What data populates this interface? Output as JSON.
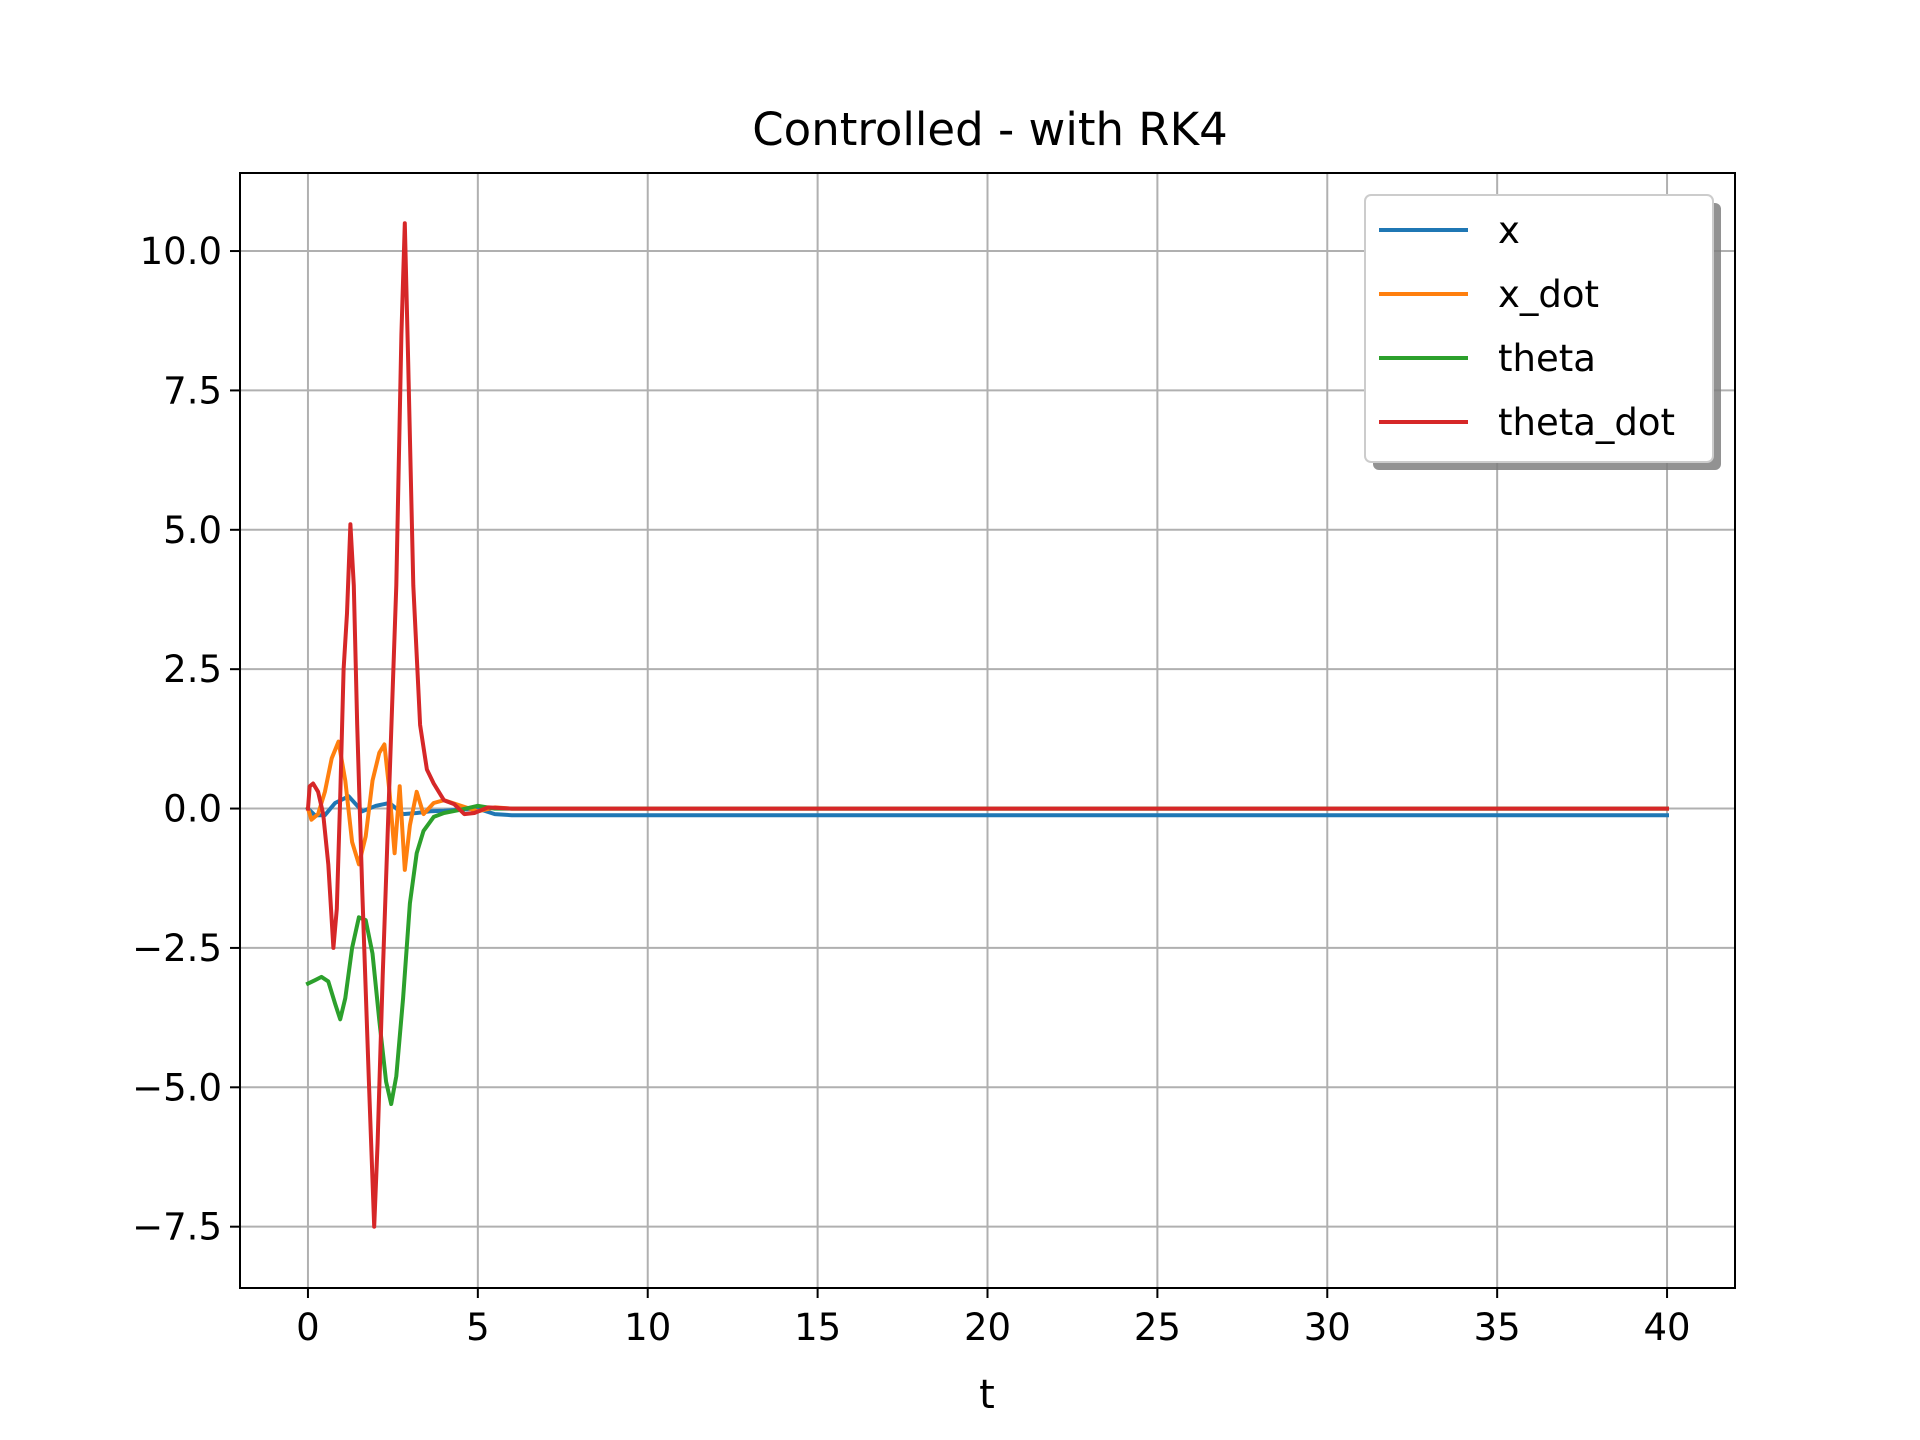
{
  "chart_data": {
    "type": "line",
    "title": "Controlled - with RK4",
    "xlabel": "t",
    "ylabel": "",
    "xlim": [
      -2,
      42
    ],
    "ylim": [
      -8.6,
      11.4
    ],
    "xticks": [
      0,
      5,
      10,
      15,
      20,
      25,
      30,
      35,
      40
    ],
    "xtick_labels": [
      "0",
      "5",
      "10",
      "15",
      "20",
      "25",
      "30",
      "35",
      "40"
    ],
    "yticks": [
      -7.5,
      -5.0,
      -2.5,
      0.0,
      2.5,
      5.0,
      7.5,
      10.0
    ],
    "ytick_labels": [
      "−7.5",
      "−5.0",
      "−2.5",
      "0.0",
      "2.5",
      "5.0",
      "7.5",
      "10.0"
    ],
    "grid": true,
    "legend_position": "top-right",
    "series": [
      {
        "name": "x",
        "color": "#1f77b4",
        "points": [
          [
            0,
            0
          ],
          [
            0.2,
            -0.12
          ],
          [
            0.5,
            -0.12
          ],
          [
            0.8,
            0.1
          ],
          [
            1.2,
            0.22
          ],
          [
            1.6,
            -0.05
          ],
          [
            2.0,
            0.05
          ],
          [
            2.4,
            0.1
          ],
          [
            2.8,
            -0.1
          ],
          [
            3.2,
            -0.08
          ],
          [
            3.6,
            -0.05
          ],
          [
            4.0,
            -0.04
          ],
          [
            5.0,
            0.0
          ],
          [
            5.5,
            -0.1
          ],
          [
            6.0,
            -0.12
          ],
          [
            10,
            -0.12
          ],
          [
            40,
            -0.12
          ]
        ]
      },
      {
        "name": "x_dot",
        "color": "#ff7f0e",
        "points": [
          [
            0,
            0
          ],
          [
            0.1,
            -0.2
          ],
          [
            0.3,
            -0.1
          ],
          [
            0.5,
            0.3
          ],
          [
            0.7,
            0.9
          ],
          [
            0.9,
            1.2
          ],
          [
            1.1,
            0.5
          ],
          [
            1.3,
            -0.6
          ],
          [
            1.5,
            -1.0
          ],
          [
            1.7,
            -0.5
          ],
          [
            1.9,
            0.5
          ],
          [
            2.1,
            1.0
          ],
          [
            2.25,
            1.15
          ],
          [
            2.4,
            0.3
          ],
          [
            2.55,
            -0.8
          ],
          [
            2.7,
            0.4
          ],
          [
            2.85,
            -1.1
          ],
          [
            3.0,
            -0.3
          ],
          [
            3.2,
            0.3
          ],
          [
            3.4,
            -0.1
          ],
          [
            3.7,
            0.1
          ],
          [
            4.0,
            0.15
          ],
          [
            4.5,
            0.05
          ],
          [
            5.0,
            -0.05
          ],
          [
            5.5,
            0.02
          ],
          [
            6.0,
            0.0
          ],
          [
            40,
            0.0
          ]
        ]
      },
      {
        "name": "theta",
        "color": "#2ca02c",
        "points": [
          [
            0,
            -3.14
          ],
          [
            0.2,
            -3.08
          ],
          [
            0.4,
            -3.02
          ],
          [
            0.6,
            -3.1
          ],
          [
            0.8,
            -3.5
          ],
          [
            0.95,
            -3.78
          ],
          [
            1.1,
            -3.4
          ],
          [
            1.3,
            -2.5
          ],
          [
            1.5,
            -1.95
          ],
          [
            1.7,
            -2.0
          ],
          [
            1.9,
            -2.6
          ],
          [
            2.1,
            -3.8
          ],
          [
            2.3,
            -4.9
          ],
          [
            2.45,
            -5.3
          ],
          [
            2.6,
            -4.8
          ],
          [
            2.8,
            -3.4
          ],
          [
            3.0,
            -1.7
          ],
          [
            3.2,
            -0.8
          ],
          [
            3.4,
            -0.4
          ],
          [
            3.7,
            -0.15
          ],
          [
            4.0,
            -0.08
          ],
          [
            4.5,
            -0.02
          ],
          [
            5.0,
            0.05
          ],
          [
            5.5,
            0.0
          ],
          [
            6.0,
            0.0
          ],
          [
            40,
            0.0
          ]
        ]
      },
      {
        "name": "theta_dot",
        "color": "#d62728",
        "points": [
          [
            0,
            0
          ],
          [
            0.05,
            0.4
          ],
          [
            0.15,
            0.45
          ],
          [
            0.3,
            0.3
          ],
          [
            0.45,
            -0.1
          ],
          [
            0.6,
            -1.0
          ],
          [
            0.75,
            -2.5
          ],
          [
            0.85,
            -1.8
          ],
          [
            0.95,
            0.2
          ],
          [
            1.05,
            2.5
          ],
          [
            1.15,
            3.5
          ],
          [
            1.25,
            5.1
          ],
          [
            1.35,
            4.0
          ],
          [
            1.45,
            1.5
          ],
          [
            1.6,
            -1.5
          ],
          [
            1.8,
            -5.0
          ],
          [
            1.95,
            -7.5
          ],
          [
            2.05,
            -6.0
          ],
          [
            2.2,
            -3.0
          ],
          [
            2.4,
            0.5
          ],
          [
            2.6,
            4.0
          ],
          [
            2.75,
            8.5
          ],
          [
            2.85,
            10.5
          ],
          [
            2.95,
            8.0
          ],
          [
            3.1,
            4.0
          ],
          [
            3.3,
            1.5
          ],
          [
            3.5,
            0.7
          ],
          [
            3.7,
            0.45
          ],
          [
            4.0,
            0.15
          ],
          [
            4.3,
            0.08
          ],
          [
            4.6,
            -0.1
          ],
          [
            4.9,
            -0.08
          ],
          [
            5.3,
            0.02
          ],
          [
            6.0,
            0.0
          ],
          [
            40,
            0.0
          ]
        ]
      }
    ]
  }
}
